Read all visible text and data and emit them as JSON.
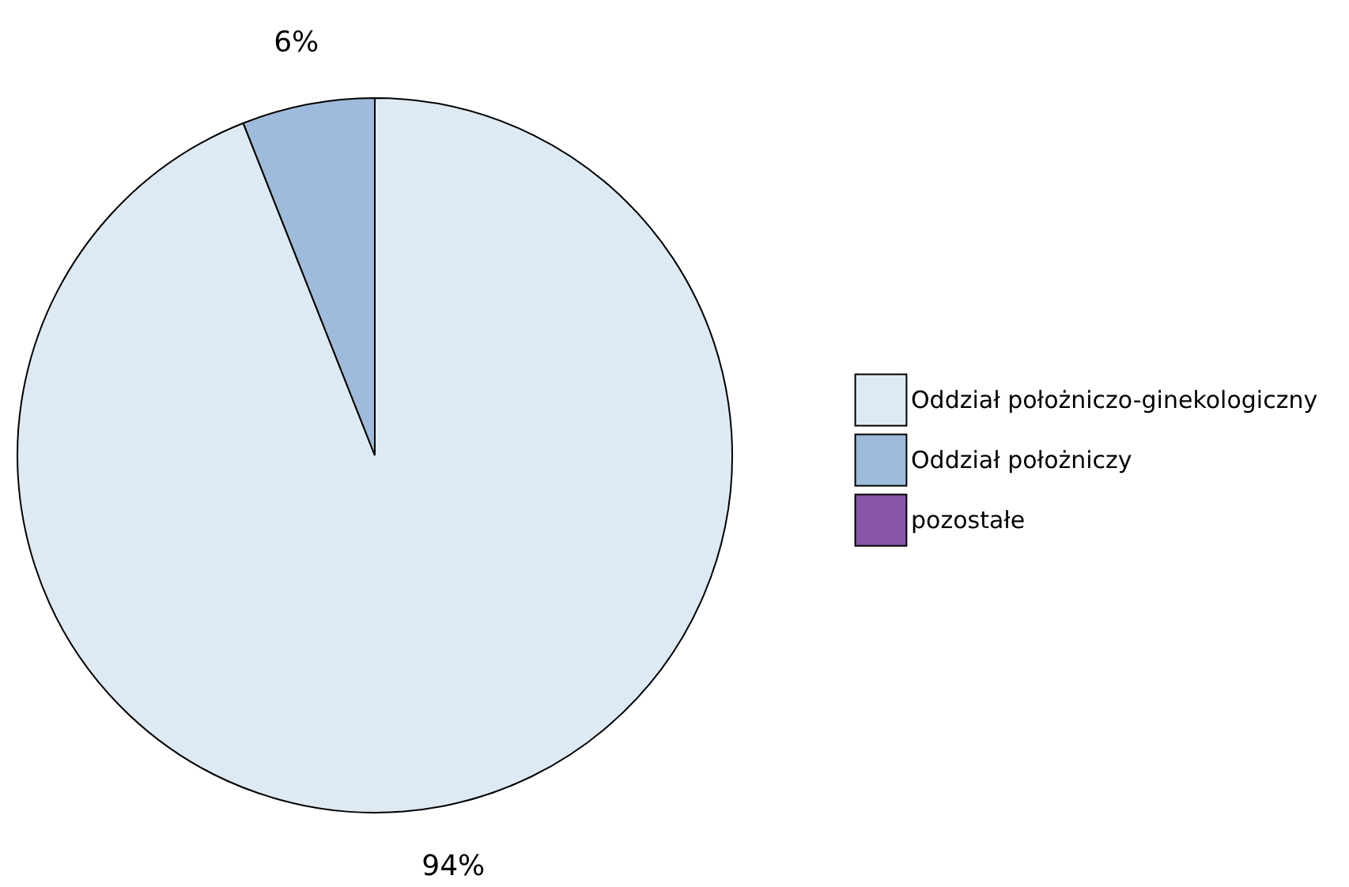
{
  "chart_data": {
    "type": "pie",
    "categories": [
      "Oddział położniczo-ginekologiczny",
      "Oddział położniczy",
      "pozostałe"
    ],
    "values": [
      94,
      6,
      0
    ],
    "colors": [
      "#deeaf3",
      "#9ebbdb",
      "#8856a7"
    ],
    "value_labels": [
      "94%",
      "6%",
      null
    ],
    "legend": "right"
  }
}
